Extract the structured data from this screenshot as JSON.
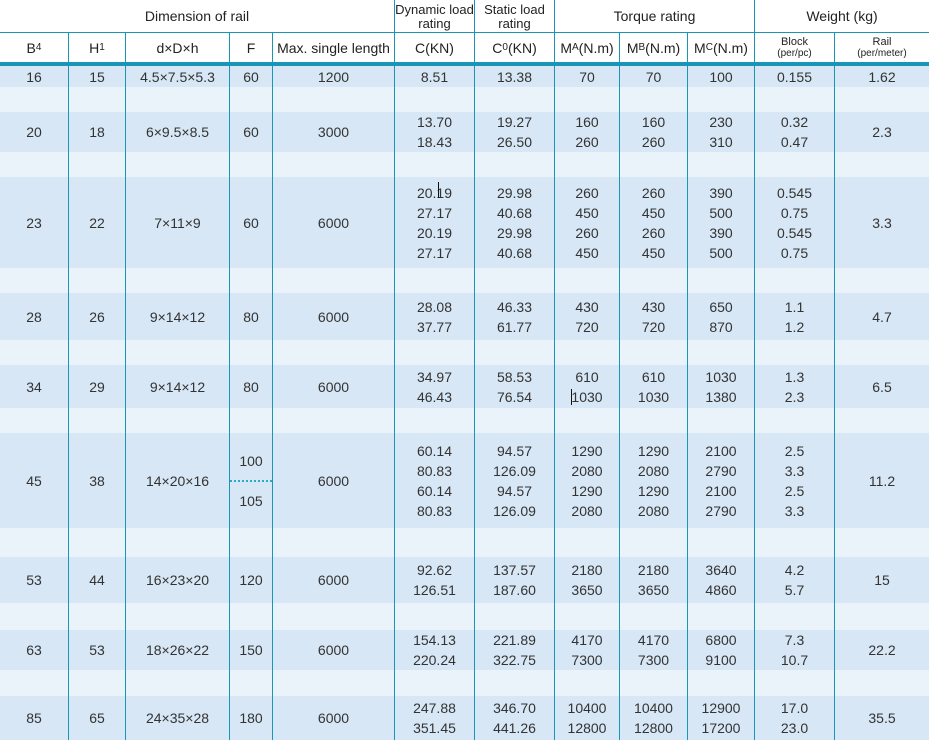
{
  "colors": {
    "border_teal": "#1995b6",
    "row_blue": "#d7e7f5",
    "row_separator": "#eaf3fa"
  },
  "header": {
    "groups": {
      "dimension": "Dimension of rail",
      "dynamic": "Dynamic load rating",
      "static": "Static load rating",
      "torque": "Torque rating",
      "weight": "Weight (kg)"
    },
    "columns": {
      "b4_pre": "B",
      "b4_sub": "4",
      "h1_pre": "H",
      "h1_sub": "1",
      "ddh": "d×D×h",
      "f": "F",
      "max_single_length": "Max. single length",
      "c": "C(KN)",
      "c0_pre": "C",
      "c0_sub": "0",
      "c0_post": "(KN)",
      "ma_pre": "M",
      "ma_sub": "A",
      "ma_post": "(N.m)",
      "mb_pre": "M",
      "mb_sub": "B",
      "mb_post": "(N.m)",
      "mc_pre": "M",
      "mc_sub": "C",
      "mc_post": "(N.m)",
      "block_line1": "Block",
      "block_line2": "(per/pc)",
      "rail_line1": "Rail",
      "rail_line2": "(per/meter)"
    }
  },
  "rows": [
    {
      "c0": "16",
      "c1": "15",
      "c2": "4.5×7.5×5.3",
      "c3": "60",
      "c4": "1200",
      "c5": "8.51",
      "c6": "13.38",
      "c7": "70",
      "c8": "70",
      "c9": "100",
      "c10": "0.155",
      "c11": "1.62"
    },
    {
      "c0": "20",
      "c1": "18",
      "c2": "6×9.5×8.5",
      "c3": "60",
      "c4": "3000",
      "c5": "13.70\n18.43",
      "c6": "19.27\n26.50",
      "c7": "160\n260",
      "c8": "160\n260",
      "c9": "230\n310",
      "c10": "0.32\n0.47",
      "c11": "2.3"
    },
    {
      "c0": "23",
      "c1": "22",
      "c2": "7×11×9",
      "c3": "60",
      "c4": "6000",
      "c5": "20.19\n27.17\n20.19\n27.17",
      "c6": "29.98\n40.68\n29.98\n40.68",
      "c7": "260\n450\n260\n450",
      "c8": "260\n450\n260\n450",
      "c9": "390\n500\n390\n500",
      "c10": "0.545\n0.75\n0.545\n0.75",
      "c11": "3.3"
    },
    {
      "c0": "28",
      "c1": "26",
      "c2": "9×14×12",
      "c3": "80",
      "c4": "6000",
      "c5": "28.08\n37.77",
      "c6": "46.33\n61.77",
      "c7": "430\n720",
      "c8": "430\n720",
      "c9": "650\n870",
      "c10": "1.1\n1.2",
      "c11": "4.7"
    },
    {
      "c0": "34",
      "c1": "29",
      "c2": "9×14×12",
      "c3": "80",
      "c4": "6000",
      "c5": "34.97\n46.43",
      "c6": "58.53\n76.54",
      "c7": "610\n1030",
      "c8": "610\n1030",
      "c9": "1030\n1380",
      "c10": "1.3\n2.3",
      "c11": "6.5"
    },
    {
      "c0": "45",
      "c1": "38",
      "c2": "14×20×16",
      "c3_top": "100",
      "c3_bottom": "105",
      "c4": "6000",
      "c5": "60.14\n80.83\n60.14\n80.83",
      "c6": "94.57\n126.09\n94.57\n126.09",
      "c7": "1290\n2080\n1290\n2080",
      "c8": "1290\n2080\n1290\n2080",
      "c9": "2100\n2790\n2100\n2790",
      "c10": "2.5\n3.3\n2.5\n3.3",
      "c11": "11.2"
    },
    {
      "c0": "53",
      "c1": "44",
      "c2": "16×23×20",
      "c3": "120",
      "c4": "6000",
      "c5": "92.62\n126.51",
      "c6": "137.57\n187.60",
      "c7": "2180\n3650",
      "c8": "2180\n3650",
      "c9": "3640\n4860",
      "c10": "4.2\n5.7",
      "c11": "15"
    },
    {
      "c0": "63",
      "c1": "53",
      "c2": "18×26×22",
      "c3": "150",
      "c4": "6000",
      "c5": "154.13\n220.24",
      "c6": "221.89\n322.75",
      "c7": "4170\n7300",
      "c8": "4170\n7300",
      "c9": "6800\n9100",
      "c10": "7.3\n10.7",
      "c11": "22.2"
    },
    {
      "c0": "85",
      "c1": "65",
      "c2": "24×35×28",
      "c3": "180",
      "c4": "6000",
      "c5": "247.88\n351.45",
      "c6": "346.70\n441.26",
      "c7": "10400\n12800",
      "c8": "10400\n12800",
      "c9": "12900\n17200",
      "c10": "17.0\n23.0",
      "c11": "35.5"
    }
  ]
}
